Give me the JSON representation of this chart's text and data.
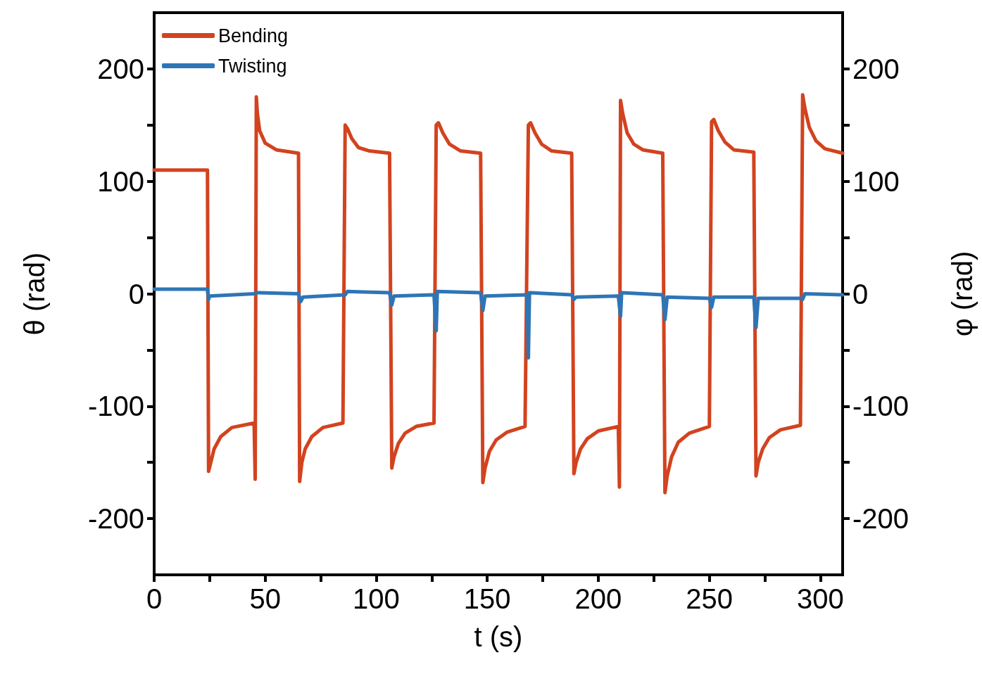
{
  "chart_data": {
    "type": "line",
    "xlabel": "t (s)",
    "ylabel": "θ (rad)",
    "y2label": "φ (rad)",
    "xlim": [
      0,
      310
    ],
    "ylim": [
      -250,
      250
    ],
    "y2lim": [
      -250,
      250
    ],
    "xticks": [
      0,
      {
        "value": 25,
        "label": null
      },
      50,
      {
        "value": 75,
        "label": null
      },
      100,
      {
        "value": 125,
        "label": null
      },
      150,
      {
        "value": 175,
        "label": null
      },
      200,
      {
        "value": 225,
        "label": null
      },
      250,
      {
        "value": 275,
        "label": null
      },
      300
    ],
    "yticks": [
      -200,
      {
        "value": -150,
        "label": null
      },
      -100,
      {
        "value": -50,
        "label": null
      },
      0,
      {
        "value": 50,
        "label": null
      },
      100,
      {
        "value": 150,
        "label": null
      },
      200
    ],
    "y2ticks": [
      -200,
      {
        "value": -150,
        "label": null
      },
      -100,
      {
        "value": -50,
        "label": null
      },
      0,
      {
        "value": 50,
        "label": null
      },
      100,
      {
        "value": 150,
        "label": null
      },
      200
    ],
    "legend": "top left",
    "grid": false,
    "marker": "none",
    "line_style": "solid",
    "series": [
      {
        "name": "Bending",
        "color": "#d2431f",
        "x": [
          0,
          24,
          24.5,
          25.5,
          27,
          30,
          35,
          45,
          45.5,
          46,
          46.5,
          47.5,
          50,
          55,
          65,
          65.5,
          66.5,
          68,
          71,
          76,
          85,
          86,
          87,
          89,
          92,
          97,
          106,
          107,
          108,
          110,
          113,
          118,
          126,
          127,
          128,
          130,
          133,
          138,
          147,
          148,
          149,
          151,
          154,
          159,
          167,
          168.5,
          169.5,
          171.5,
          174.5,
          179,
          188,
          189,
          190,
          192,
          195,
          200,
          209,
          209.5,
          210,
          211,
          213,
          216,
          220,
          229,
          230,
          231,
          233,
          236,
          241,
          250,
          251,
          252,
          254,
          257,
          261,
          270,
          271,
          272,
          274,
          277,
          282,
          291,
          292,
          293,
          295,
          298,
          302,
          310
        ],
        "values": [
          110,
          110,
          -158,
          -150,
          -138,
          -127,
          -119,
          -115,
          -165,
          175,
          160,
          145,
          134,
          128,
          125,
          -167,
          -150,
          -138,
          -127,
          -119,
          -115,
          150,
          147,
          138,
          130,
          127,
          125,
          -155,
          -145,
          -133,
          -124,
          -118,
          -115,
          150,
          152,
          143,
          133,
          127,
          125,
          -168,
          -155,
          -140,
          -130,
          -123,
          -118,
          150,
          152,
          143,
          133,
          127,
          125,
          -160,
          -150,
          -138,
          -129,
          -122,
          -118,
          -172,
          172,
          160,
          143,
          133,
          128,
          125,
          -177,
          -162,
          -145,
          -132,
          -124,
          -118,
          153,
          155,
          145,
          135,
          128,
          126,
          -162,
          -150,
          -138,
          -128,
          -121,
          -117,
          177,
          165,
          148,
          136,
          129,
          125
        ]
      },
      {
        "name": "Twisting",
        "color": "#2e75b6",
        "x": [
          0,
          24,
          24.5,
          25,
          45,
          46,
          47,
          65,
          66,
          67,
          86,
          87,
          106,
          107,
          108,
          126,
          127,
          127.5,
          147,
          148,
          149,
          168,
          168.5,
          169,
          188,
          189,
          190,
          209,
          210,
          210.5,
          229,
          230,
          231,
          250,
          251,
          252,
          270,
          271,
          272,
          291,
          292,
          293,
          310
        ],
        "values": [
          4,
          4,
          -5,
          -2,
          0,
          1,
          1,
          0,
          -7,
          -3,
          -1,
          2,
          1,
          -10,
          -2,
          -1,
          -33,
          2,
          1,
          -15,
          -2,
          -1,
          -57,
          1,
          -1,
          -5,
          -3,
          -2,
          -20,
          1,
          -1,
          -23,
          -3,
          -4,
          -12,
          -3,
          -3,
          -30,
          -4,
          -4,
          -5,
          0,
          -1
        ]
      }
    ]
  }
}
